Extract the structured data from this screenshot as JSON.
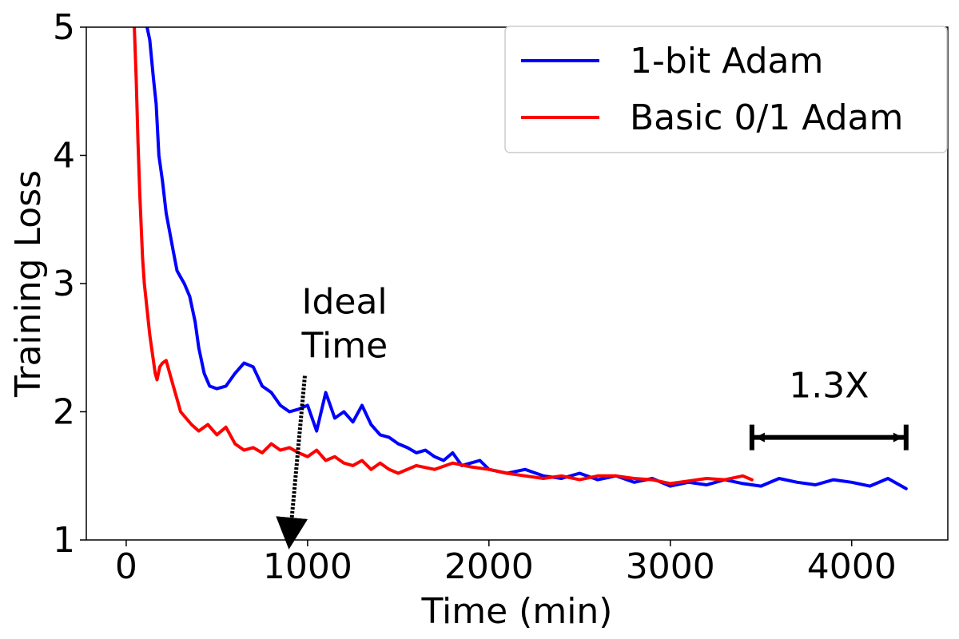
{
  "chart_data": {
    "type": "line",
    "title": "",
    "xlabel": "Time (min)",
    "ylabel": "Training Loss",
    "xlim": [
      -220,
      4530
    ],
    "ylim": [
      1,
      5
    ],
    "xticks": [
      0,
      1000,
      2000,
      3000,
      4000
    ],
    "xtick_labels": [
      "0",
      "1000",
      "2000",
      "3000",
      "4000"
    ],
    "yticks": [
      1,
      2,
      3,
      4,
      5
    ],
    "ytick_labels": [
      "1",
      "2",
      "3",
      "4",
      "5"
    ],
    "grid": false,
    "legend_position": "top-right",
    "series": [
      {
        "name": "1-bit Adam",
        "color": "#0000ff",
        "x": [
          115,
          130,
          150,
          165,
          180,
          200,
          220,
          240,
          260,
          280,
          300,
          320,
          350,
          380,
          400,
          430,
          460,
          500,
          550,
          600,
          650,
          700,
          750,
          800,
          850,
          900,
          950,
          1000,
          1050,
          1100,
          1150,
          1200,
          1250,
          1300,
          1350,
          1400,
          1450,
          1500,
          1550,
          1600,
          1650,
          1700,
          1750,
          1800,
          1850,
          1900,
          1950,
          2000,
          2100,
          2200,
          2300,
          2400,
          2500,
          2600,
          2700,
          2800,
          2900,
          3000,
          3100,
          3200,
          3300,
          3400,
          3500,
          3600,
          3700,
          3800,
          3900,
          4000,
          4100,
          4200,
          4300
        ],
        "y": [
          5.0,
          4.9,
          4.6,
          4.4,
          4.0,
          3.8,
          3.55,
          3.4,
          3.25,
          3.1,
          3.05,
          3.0,
          2.9,
          2.7,
          2.5,
          2.3,
          2.2,
          2.18,
          2.2,
          2.3,
          2.38,
          2.35,
          2.2,
          2.15,
          2.05,
          2.0,
          2.02,
          2.05,
          1.85,
          2.15,
          1.95,
          2.0,
          1.92,
          2.05,
          1.9,
          1.82,
          1.8,
          1.75,
          1.72,
          1.68,
          1.7,
          1.65,
          1.62,
          1.68,
          1.58,
          1.6,
          1.62,
          1.55,
          1.52,
          1.55,
          1.5,
          1.48,
          1.52,
          1.47,
          1.5,
          1.45,
          1.48,
          1.42,
          1.45,
          1.43,
          1.47,
          1.44,
          1.42,
          1.48,
          1.45,
          1.43,
          1.47,
          1.45,
          1.42,
          1.48,
          1.4
        ]
      },
      {
        "name": "Basic 0/1 Adam",
        "color": "#ff0000",
        "x": [
          45,
          55,
          65,
          75,
          90,
          100,
          115,
          130,
          145,
          160,
          170,
          185,
          200,
          220,
          240,
          260,
          280,
          300,
          330,
          360,
          400,
          450,
          500,
          550,
          600,
          650,
          700,
          750,
          800,
          850,
          900,
          950,
          1000,
          1050,
          1100,
          1150,
          1200,
          1250,
          1300,
          1350,
          1400,
          1450,
          1500,
          1600,
          1700,
          1800,
          1900,
          2000,
          2100,
          2200,
          2300,
          2400,
          2500,
          2600,
          2700,
          2800,
          2900,
          3000,
          3100,
          3200,
          3300,
          3400,
          3450
        ],
        "y": [
          5.0,
          4.6,
          4.1,
          3.7,
          3.2,
          3.0,
          2.8,
          2.6,
          2.45,
          2.3,
          2.25,
          2.35,
          2.38,
          2.4,
          2.3,
          2.2,
          2.1,
          2.0,
          1.95,
          1.9,
          1.85,
          1.9,
          1.82,
          1.88,
          1.75,
          1.7,
          1.72,
          1.68,
          1.75,
          1.7,
          1.72,
          1.68,
          1.65,
          1.7,
          1.62,
          1.65,
          1.6,
          1.58,
          1.62,
          1.55,
          1.6,
          1.55,
          1.52,
          1.58,
          1.55,
          1.6,
          1.57,
          1.55,
          1.52,
          1.5,
          1.48,
          1.5,
          1.47,
          1.5,
          1.5,
          1.48,
          1.47,
          1.44,
          1.46,
          1.48,
          1.47,
          1.5,
          1.47
        ]
      }
    ],
    "annotations": [
      {
        "id": "ideal-time",
        "lines": [
          "Ideal",
          "Time"
        ],
        "arrow_from": [
          985,
          2.28
        ],
        "arrow_to": [
          905,
          1.05
        ]
      },
      {
        "id": "speedup",
        "text": "1.3X",
        "bracket_x": [
          3450,
          4300
        ],
        "bracket_y": 1.8
      }
    ]
  }
}
